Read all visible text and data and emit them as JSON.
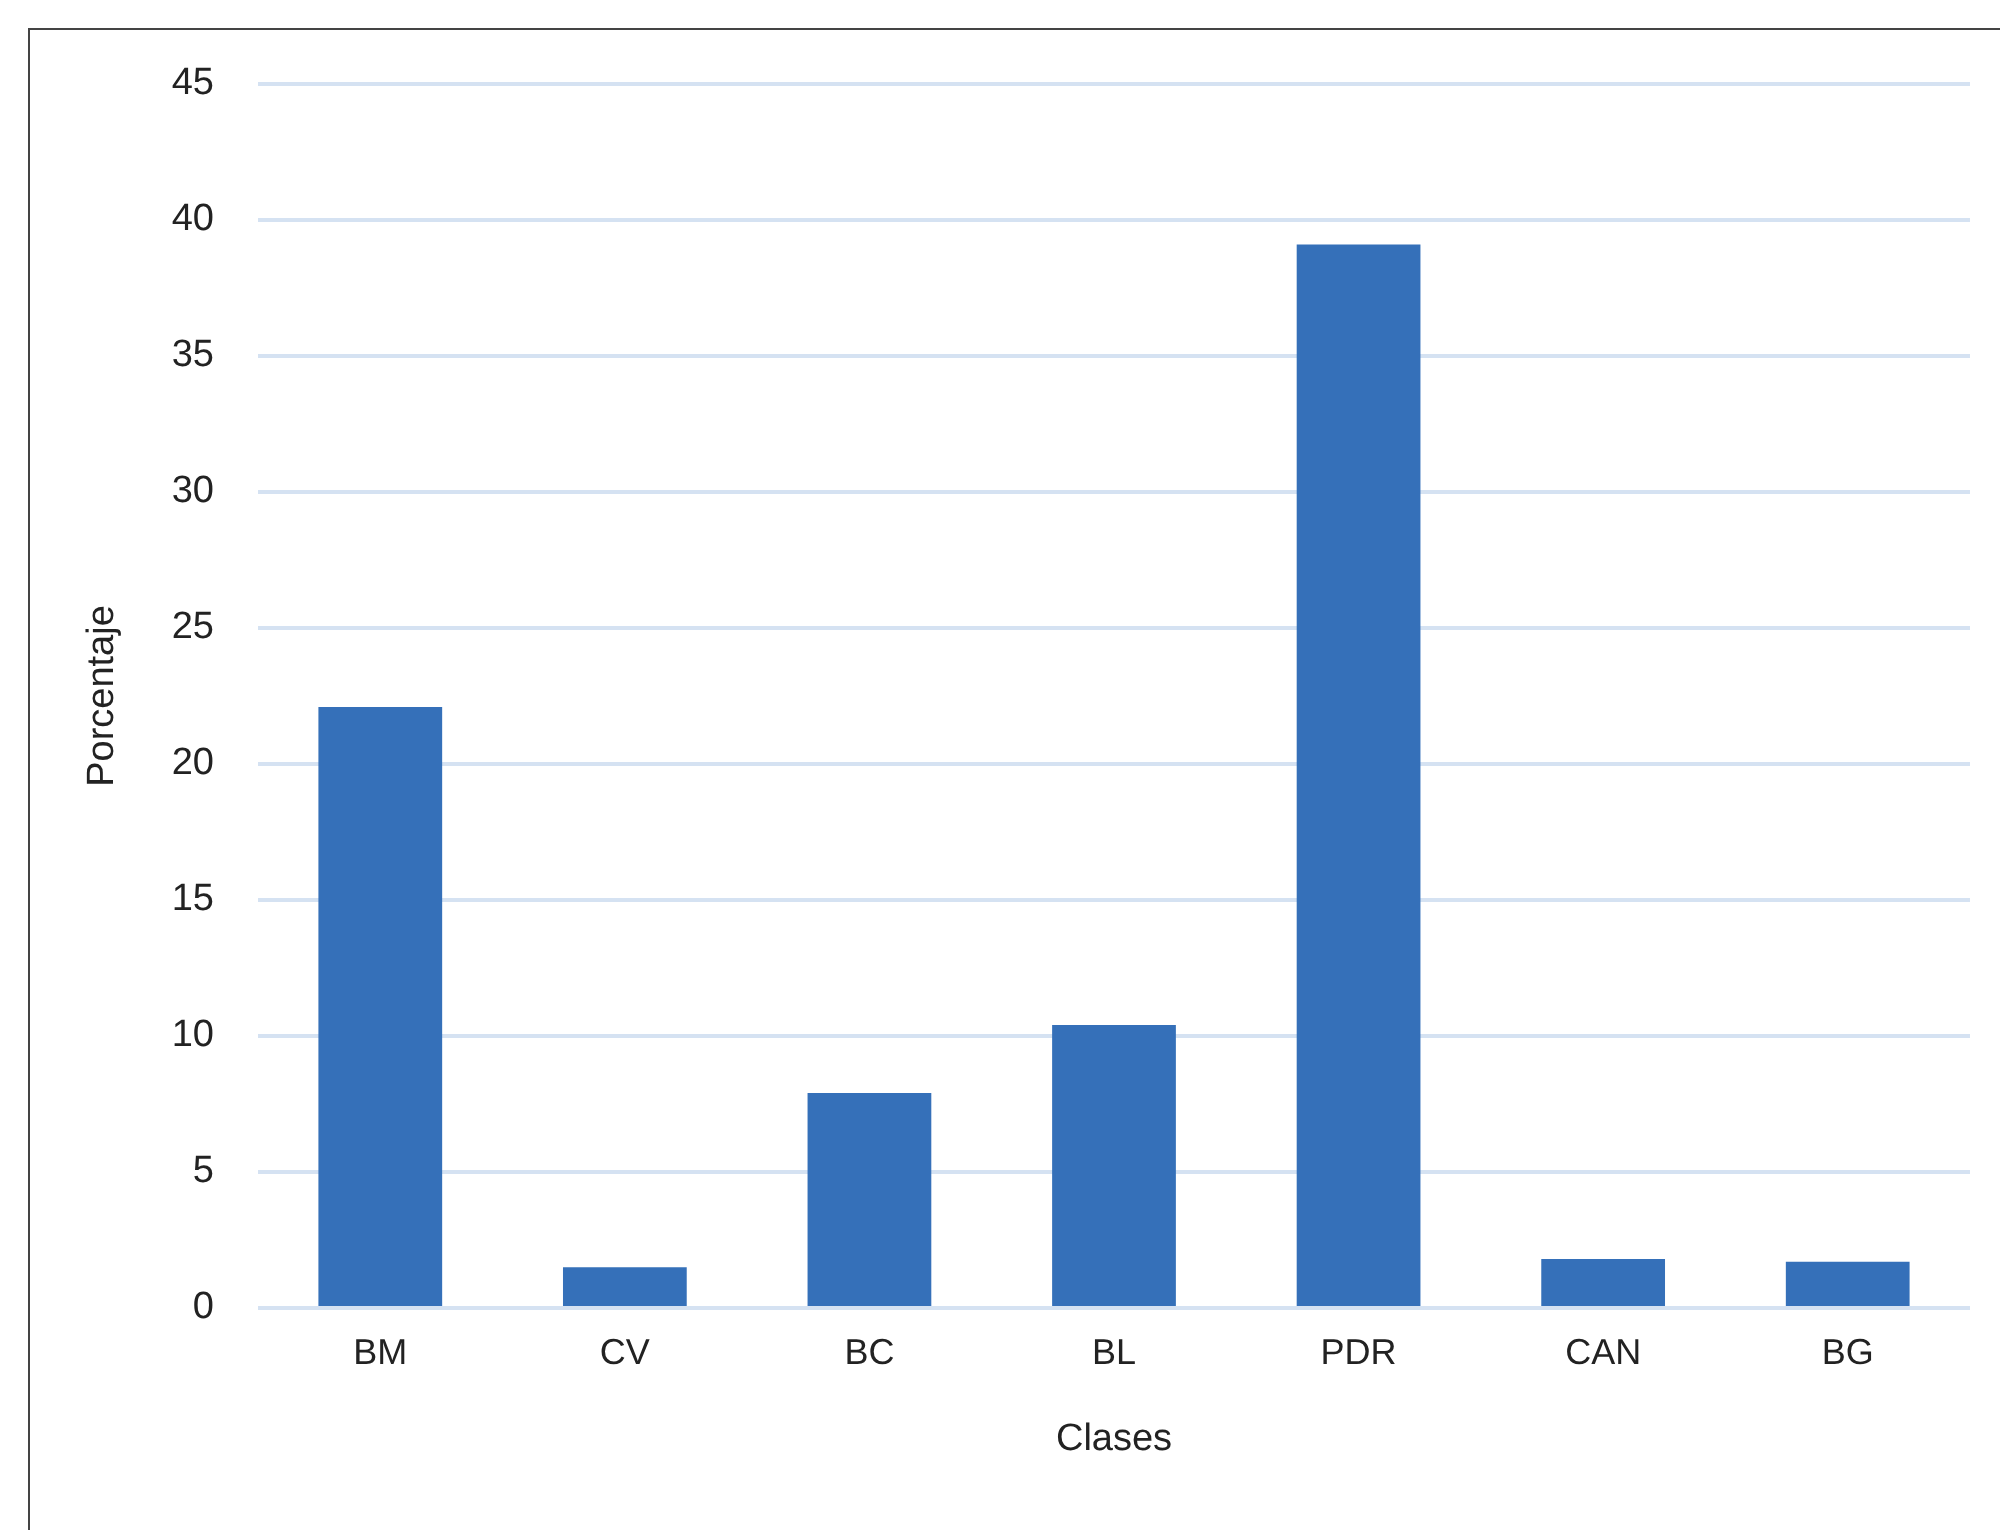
{
  "chart_data": {
    "type": "bar",
    "xlabel": "Clases",
    "ylabel": "Porcentaje",
    "categories": [
      "BM",
      "CV",
      "BC",
      "BL",
      "PDR",
      "CAN",
      "BG"
    ],
    "values": [
      22.1,
      1.5,
      7.9,
      10.4,
      39.1,
      1.8,
      1.7
    ],
    "color": "#3570b9",
    "ylim": [
      0,
      45
    ],
    "yticks": [
      0,
      5,
      10,
      15,
      20,
      25,
      30,
      35,
      40,
      45
    ],
    "grid": "y"
  }
}
